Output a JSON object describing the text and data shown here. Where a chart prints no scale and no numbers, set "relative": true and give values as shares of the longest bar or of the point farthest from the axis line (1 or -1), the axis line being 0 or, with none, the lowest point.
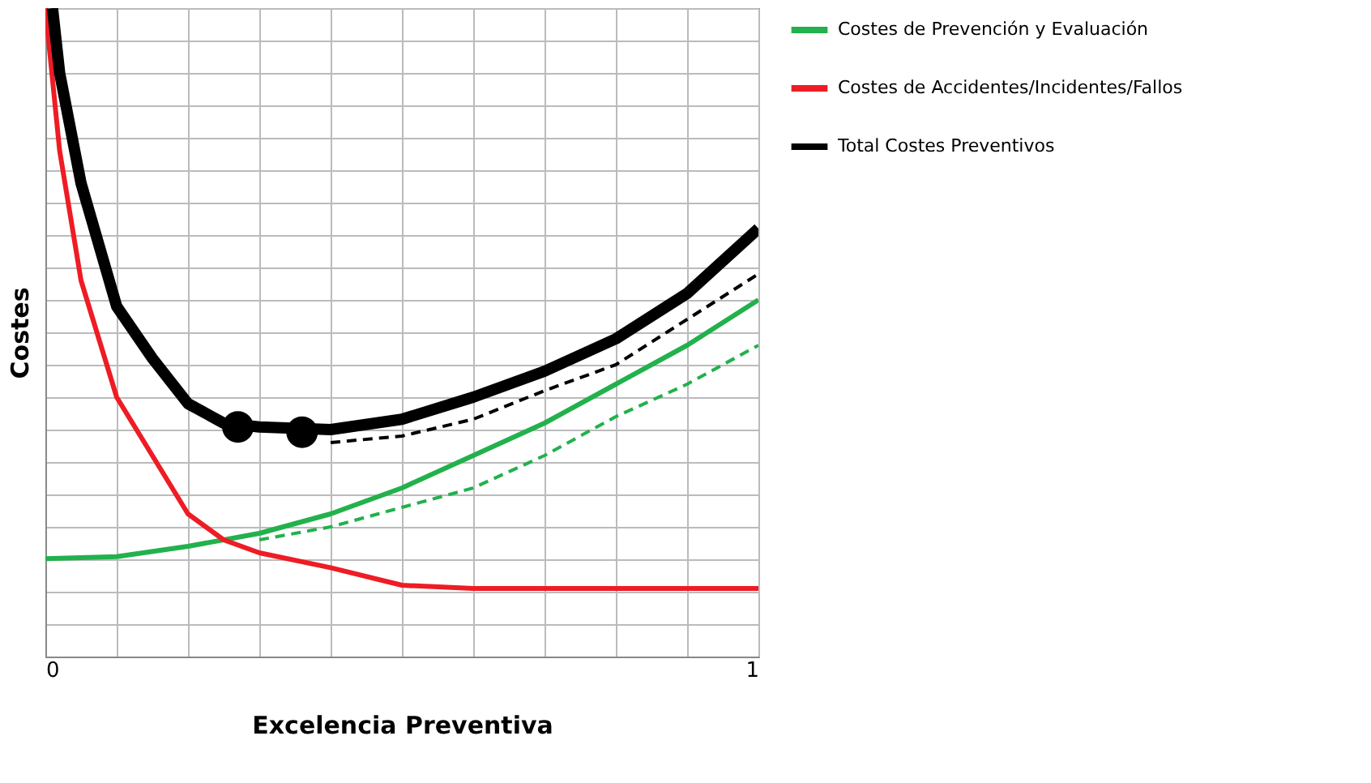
{
  "chart_data": {
    "type": "line",
    "relative": true,
    "xlabel": "Excelencia Preventiva",
    "ylabel": "Costes",
    "xlim": [
      0,
      1
    ],
    "xticks": [
      0,
      {
        "value": 0.1,
        "label": null
      },
      {
        "value": 0.2,
        "label": null
      },
      {
        "value": 0.3,
        "label": null
      },
      {
        "value": 0.4,
        "label": null
      },
      {
        "value": 0.5,
        "label": null
      },
      {
        "value": 0.6,
        "label": null
      },
      {
        "value": 0.7,
        "label": null
      },
      {
        "value": 0.8,
        "label": null
      },
      {
        "value": 0.9,
        "label": null
      },
      1
    ],
    "grid": true,
    "legend": "right",
    "marker": "none",
    "series": [
      {
        "name": "Costes de Prevención y Evaluación",
        "color": "#22b14c",
        "line_style": "solid",
        "x": [
          0,
          0.1,
          0.2,
          0.3,
          0.4,
          0.5,
          0.6,
          0.7,
          0.8,
          0.9,
          1
        ],
        "values": [
          0.151,
          0.154,
          0.17,
          0.19,
          0.22,
          0.26,
          0.31,
          0.36,
          0.42,
          0.48,
          0.55
        ]
      },
      {
        "color": "#22b14c",
        "line_style": "dashed",
        "x": [
          0.3,
          0.4,
          0.5,
          0.6,
          0.7,
          0.8,
          0.9,
          1
        ],
        "values": [
          0.18,
          0.2,
          0.23,
          0.26,
          0.31,
          0.37,
          0.42,
          0.48
        ]
      },
      {
        "name": "Costes de Accidentes/Incidentes/Fallos",
        "color": "#ee1c24",
        "line_style": "solid",
        "x": [
          0,
          0.02,
          0.05,
          0.1,
          0.15,
          0.2,
          0.25,
          0.3,
          0.4,
          0.5,
          0.6,
          1
        ],
        "values": [
          1.0,
          0.78,
          0.58,
          0.4,
          0.31,
          0.22,
          0.18,
          0.16,
          0.137,
          0.11,
          0.105,
          0.105
        ]
      },
      {
        "name": "Total Costes Preventivos",
        "color": "#000000",
        "line_style": "solid",
        "x": [
          0.01,
          0.02,
          0.05,
          0.1,
          0.15,
          0.2,
          0.25,
          0.3,
          0.4,
          0.5,
          0.6,
          0.7,
          0.8,
          0.9,
          1
        ],
        "values": [
          1.0,
          0.9,
          0.73,
          0.54,
          0.46,
          0.39,
          0.36,
          0.354,
          0.35,
          0.366,
          0.4,
          0.44,
          0.49,
          0.56,
          0.66
        ]
      },
      {
        "color": "#000000",
        "line_style": "dashed",
        "x": [
          0.4,
          0.5,
          0.6,
          0.7,
          0.8,
          0.9,
          1
        ],
        "values": [
          0.33,
          0.34,
          0.366,
          0.41,
          0.45,
          0.52,
          0.59
        ]
      },
      {
        "type": "scatter",
        "marker": "circle",
        "color": "#000000",
        "x": [
          0.27,
          0.36
        ],
        "values": [
          0.354,
          0.346
        ]
      }
    ]
  }
}
